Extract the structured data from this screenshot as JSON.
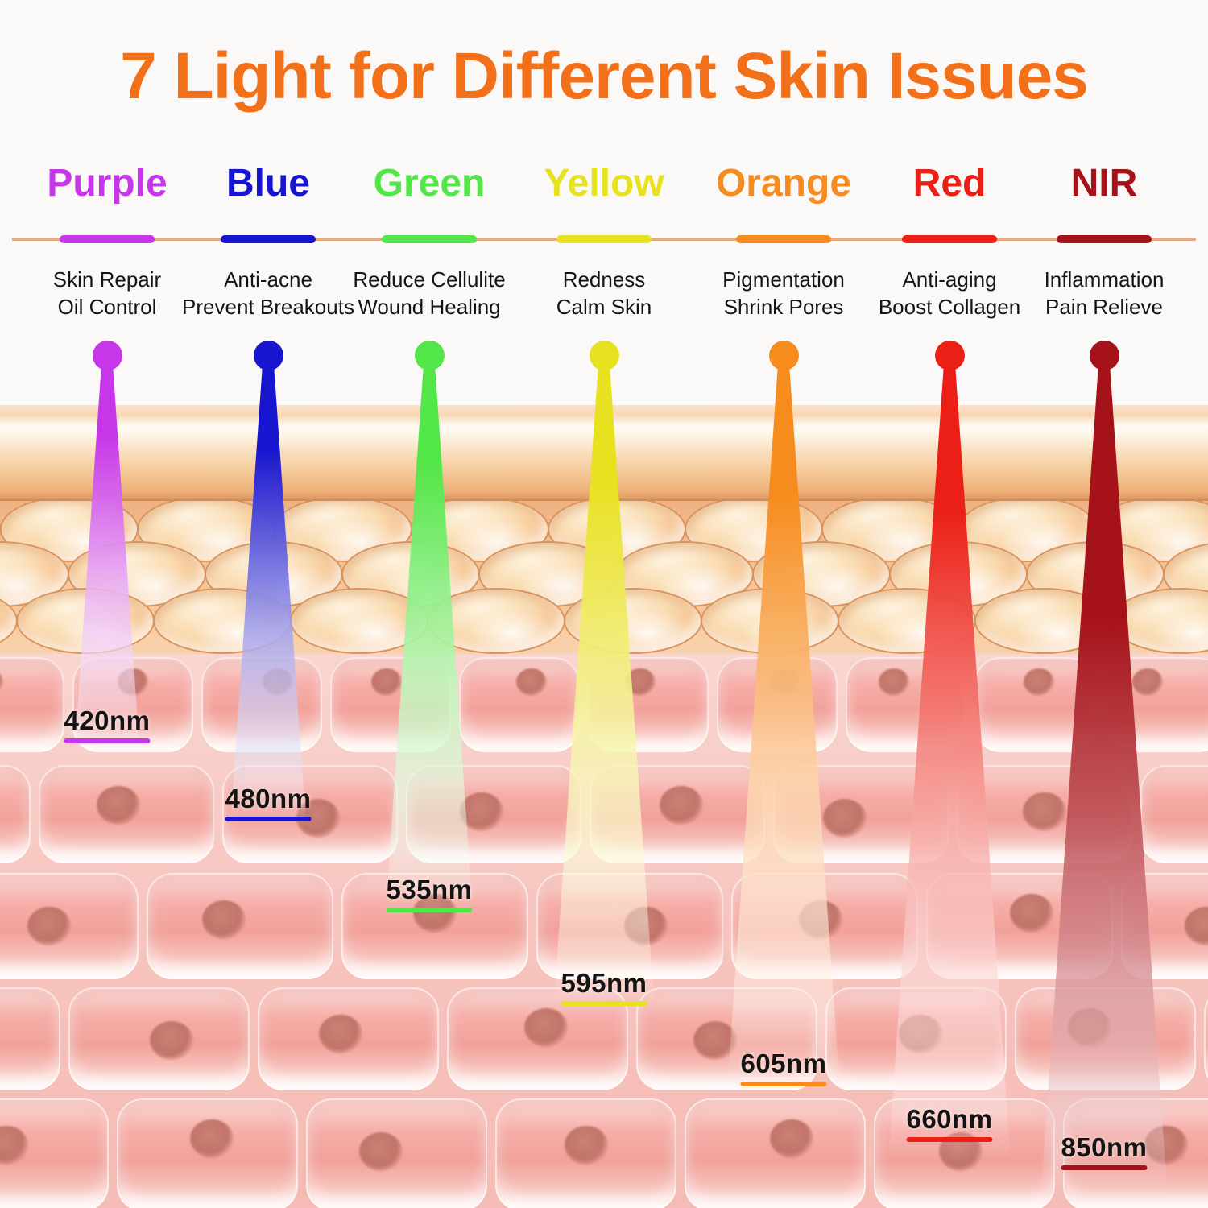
{
  "title": "7 Light for Different Skin Issues",
  "title_color": "#F3701B",
  "divider_color": "#EBA77C",
  "text_color": "#151515",
  "lights": [
    {
      "name": "Purple",
      "color": "#C736E8",
      "benefits": [
        "Skin Repair",
        "Oil Control"
      ],
      "wavelength": "420nm"
    },
    {
      "name": "Blue",
      "color": "#1715CF",
      "benefits": [
        "Anti-acne",
        "Prevent Breakouts"
      ],
      "wavelength": "480nm"
    },
    {
      "name": "Green",
      "color": "#53E648",
      "benefits": [
        "Reduce Cellulite",
        "Wound Healing"
      ],
      "wavelength": "535nm"
    },
    {
      "name": "Yellow",
      "color": "#E8E11F",
      "benefits": [
        "Redness",
        "Calm Skin"
      ],
      "wavelength": "595nm"
    },
    {
      "name": "Orange",
      "color": "#F78C1E",
      "benefits": [
        "Pigmentation",
        "Shrink Pores"
      ],
      "wavelength": "605nm"
    },
    {
      "name": "Red",
      "color": "#EB1F15",
      "benefits": [
        "Anti-aging",
        "Boost Collagen"
      ],
      "wavelength": "660nm"
    },
    {
      "name": "NIR",
      "color": "#A6121A",
      "benefits": [
        "Inflammation",
        "Pain Relieve"
      ],
      "wavelength": "850nm"
    }
  ]
}
